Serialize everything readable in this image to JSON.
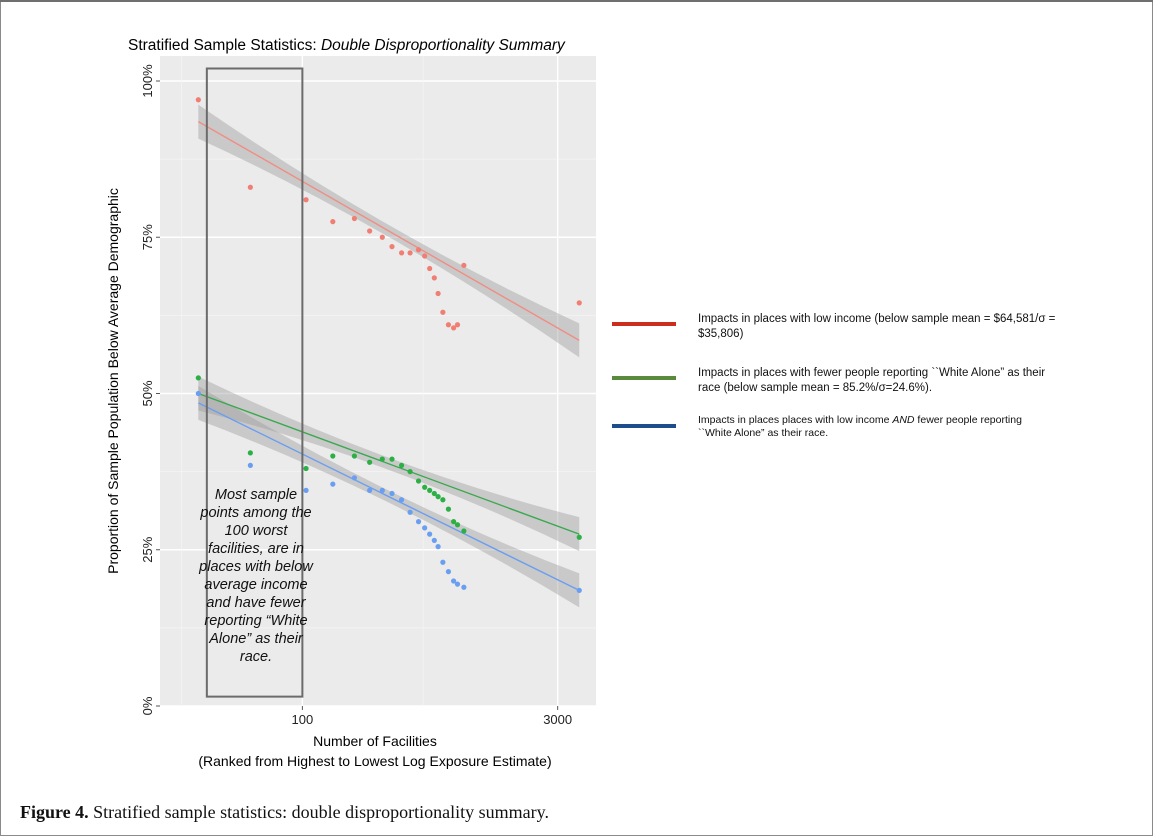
{
  "chart_data": {
    "type": "scatter",
    "title_plain": "Stratified Sample Statistics: ",
    "title_italic": "Double Disproportionality Summary",
    "xlabel": "Number of Facilities",
    "xlabel2": "(Ranked from Highest to Lowest Log Exposure Estimate)",
    "ylabel": "Proportion of Sample Population Below Average Demographic",
    "x_scale": "log",
    "xlim": [
      15,
      5000
    ],
    "ylim": [
      0,
      1.04
    ],
    "x_ticks": [
      100,
      3000
    ],
    "x_tick_labels": [
      "100",
      "3000"
    ],
    "y_ticks": [
      0,
      0.25,
      0.5,
      0.75,
      1.0
    ],
    "y_tick_labels": [
      "0%",
      "25%",
      "50%",
      "75%",
      "100%"
    ],
    "grid": true,
    "series": [
      {
        "color": "#f07e73",
        "line_color": "#f08d84",
        "x": [
          25,
          50,
          105,
          150,
          200,
          245,
          290,
          330,
          375,
          420,
          470,
          510,
          545,
          580,
          610,
          650,
          700,
          750,
          790,
          860,
          4000
        ],
        "y": [
          0.97,
          0.83,
          0.81,
          0.775,
          0.78,
          0.76,
          0.75,
          0.735,
          0.725,
          0.725,
          0.73,
          0.72,
          0.7,
          0.685,
          0.66,
          0.63,
          0.61,
          0.605,
          0.61,
          0.705,
          0.645
        ],
        "fit": {
          "x": [
            25,
            4000
          ],
          "y": [
            0.935,
            0.585
          ]
        }
      },
      {
        "color": "#2cb046",
        "line_color": "#3aa84e",
        "x": [
          25,
          50,
          105,
          150,
          200,
          245,
          290,
          330,
          375,
          420,
          470,
          510,
          545,
          580,
          610,
          650,
          700,
          750,
          790,
          860,
          4000
        ],
        "y": [
          0.525,
          0.405,
          0.38,
          0.4,
          0.4,
          0.39,
          0.395,
          0.395,
          0.385,
          0.375,
          0.36,
          0.35,
          0.345,
          0.34,
          0.335,
          0.33,
          0.315,
          0.295,
          0.29,
          0.28,
          0.27
        ],
        "fit": {
          "x": [
            25,
            4000
          ],
          "y": [
            0.5,
            0.275
          ]
        }
      },
      {
        "color": "#6a9ef0",
        "line_color": "#6a9ef0",
        "x": [
          25,
          50,
          105,
          150,
          200,
          245,
          290,
          330,
          375,
          420,
          470,
          510,
          545,
          580,
          610,
          650,
          700,
          750,
          790,
          860,
          4000
        ],
        "y": [
          0.5,
          0.385,
          0.345,
          0.355,
          0.365,
          0.345,
          0.345,
          0.34,
          0.33,
          0.31,
          0.295,
          0.285,
          0.275,
          0.265,
          0.255,
          0.23,
          0.215,
          0.2,
          0.195,
          0.19,
          0.185
        ],
        "fit": {
          "x": [
            25,
            4000
          ],
          "y": [
            0.485,
            0.185
          ]
        }
      }
    ],
    "highlight_box": {
      "x": [
        28,
        100
      ],
      "y": [
        0.015,
        1.02
      ]
    },
    "annotation": "Most sample points among the 100 worst facilities, are in places with below average income and have fewer reporting “White Alone” as their race.",
    "legend": [
      {
        "color": "#cc2e1e",
        "label": "Impacts in places with low income (below sample mean = $64,581/σ = $35,806)"
      },
      {
        "color": "#5a8a3c",
        "label": "Impacts in places with fewer people reporting ``White Alone” as their race (below sample mean = 85.2%/σ=24.6%)."
      },
      {
        "color": "#1d4d8c",
        "label_parts": [
          "Impacts in places places with low income ",
          "AND",
          " fewer people reporting ``White Alone” as their race."
        ]
      }
    ]
  },
  "caption": {
    "label": "Figure 4.",
    "text": " Stratified sample statistics: double disproportionality summary."
  }
}
